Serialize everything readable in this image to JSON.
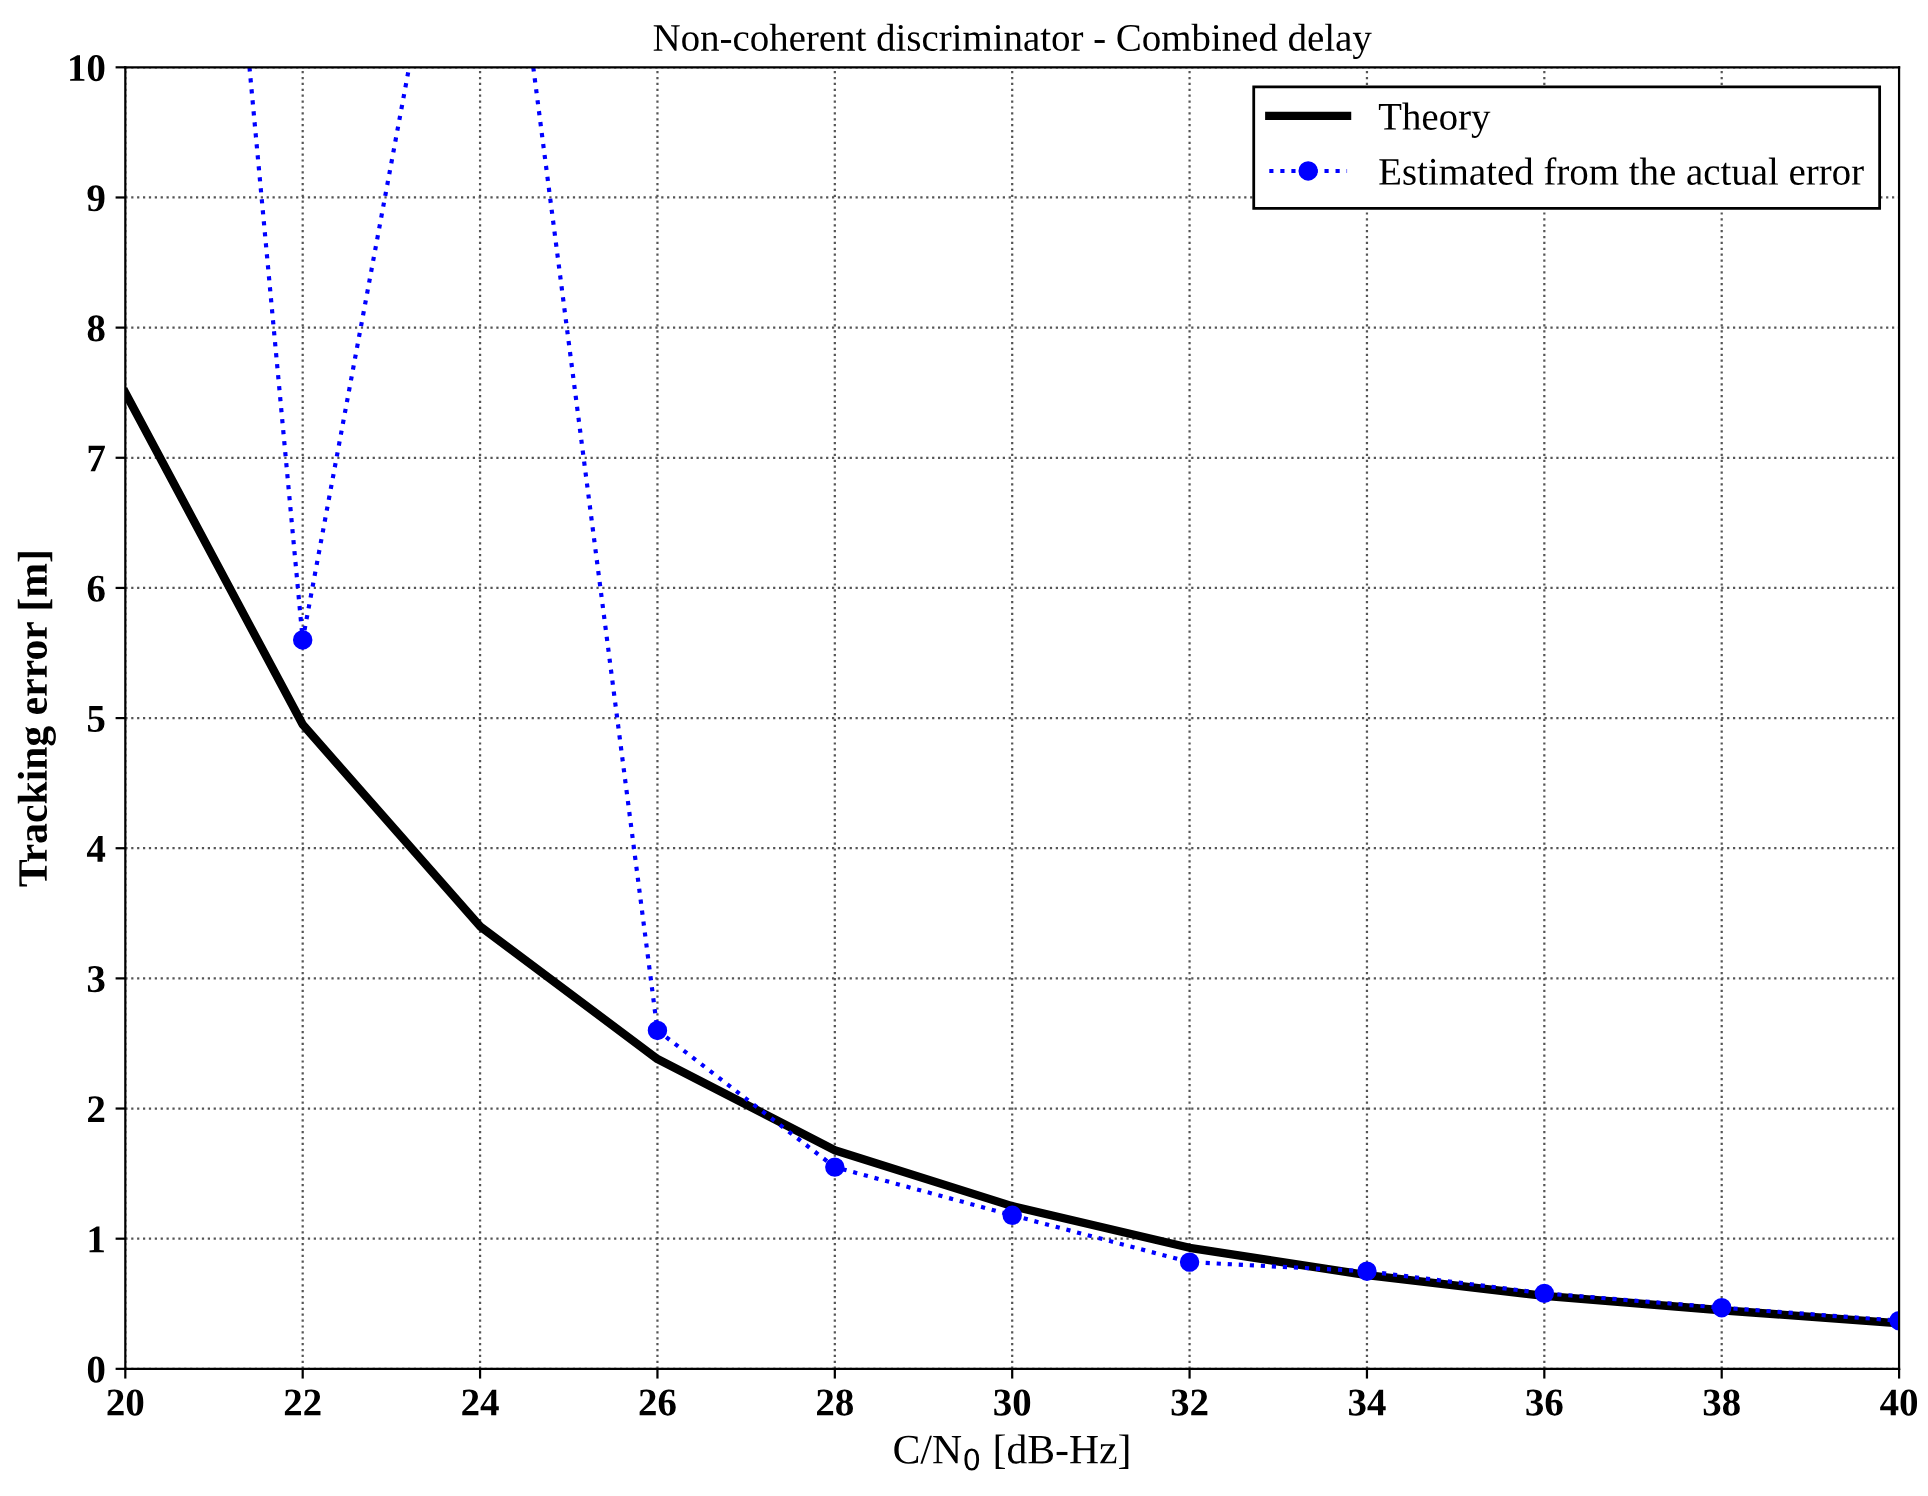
{
  "chart_data": {
    "type": "line",
    "title": "Non-coherent discriminator - Combined delay",
    "xlabel": "C/N$_{0}$ [dB-Hz]",
    "ylabel": "Tracking error [m]",
    "xlim": [
      20,
      40
    ],
    "xticks": [
      20,
      22,
      24,
      26,
      28,
      30,
      32,
      34,
      36,
      38,
      40
    ],
    "ylim": [
      0,
      10
    ],
    "yticks": [
      0,
      1,
      2,
      3,
      4,
      5,
      6,
      7,
      8,
      9,
      10
    ],
    "grid": true,
    "legend": "top right",
    "series": [
      {
        "name": "Theory",
        "color": "#000000",
        "line_style": "solid",
        "marker": "none",
        "x": [
          20,
          22,
          24,
          26,
          28,
          30,
          32,
          34,
          36,
          38,
          40
        ],
        "values": [
          7.5,
          4.95,
          3.4,
          2.38,
          1.68,
          1.25,
          0.93,
          0.72,
          0.56,
          0.45,
          0.35
        ]
      },
      {
        "name": "Estimated from the actual error",
        "color": "#0000ff",
        "line_style": "dotted",
        "marker": "circle",
        "x": [
          22,
          24,
          26,
          28,
          30,
          32,
          34,
          36,
          38,
          40
        ],
        "values": [
          5.6,
          null,
          2.6,
          1.55,
          1.18,
          0.82,
          0.75,
          0.58,
          0.47,
          0.37
        ]
      },
      {
        "color": "#0000ff",
        "line_style": "dotted",
        "marker": "none",
        "x": [
          21.4,
          22,
          23.2,
          24,
          24.6,
          26
        ],
        "values": [
          10,
          5.6,
          10,
          null,
          10,
          2.6
        ]
      }
    ]
  }
}
